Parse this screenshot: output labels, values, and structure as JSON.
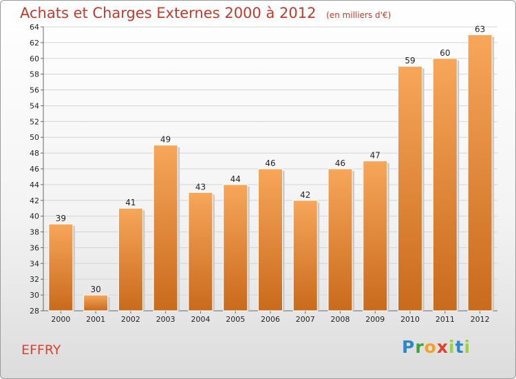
{
  "header": {
    "title": "Achats et Charges Externes 2000 à 2012",
    "unit": "(en milliers d'€)"
  },
  "footer": {
    "city": "EFFRY",
    "logo_text": "Proxiti"
  },
  "colors": {
    "bar_light": "#f7a65a",
    "bar_dark": "#c96a1c",
    "title": "#c0392b",
    "city": "#d9432f"
  },
  "chart_data": {
    "type": "bar",
    "title": "Achats et Charges Externes 2000 à 2012",
    "subtitle": "(en milliers d'€)",
    "categories": [
      "2000",
      "2001",
      "2002",
      "2003",
      "2004",
      "2005",
      "2006",
      "2007",
      "2008",
      "2009",
      "2010",
      "2011",
      "2012"
    ],
    "values": [
      39,
      30,
      41,
      49,
      43,
      44,
      46,
      42,
      46,
      47,
      59,
      60,
      63
    ],
    "ylim": [
      28,
      64
    ],
    "yticks": [
      28,
      30,
      32,
      34,
      36,
      38,
      40,
      42,
      44,
      46,
      48,
      50,
      52,
      54,
      56,
      58,
      60,
      62,
      64
    ],
    "grid": true,
    "legend": "none"
  }
}
